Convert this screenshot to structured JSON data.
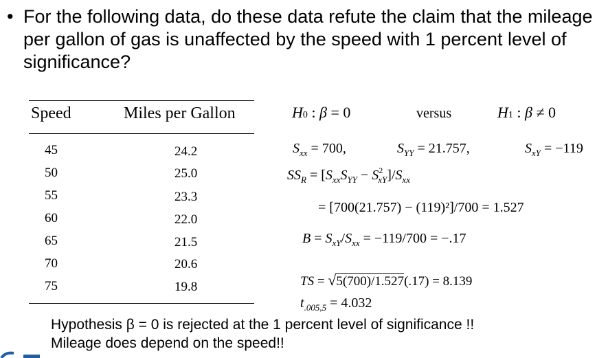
{
  "question": "For the following data, do these data refute the claim that the mileage per gallon of gas is unaffected by the speed with 1 percent level of significance?",
  "table": {
    "headers": [
      "Speed",
      "Miles per Gallon"
    ],
    "speed": [
      "45",
      "50",
      "55",
      "60",
      "65",
      "70",
      "75"
    ],
    "mpg": [
      "24.2",
      "25.0",
      "23.3",
      "22.0",
      "21.5",
      "20.6",
      "19.8"
    ]
  },
  "math": {
    "versus": "versus",
    "val_sxx": "= 700,",
    "val_syy": "= 21.757,",
    "val_sxy": "= −119",
    "ssr_eq": "= [700(21.757) − (119)²]/700 = 1.527",
    "b_eq": "= −119/700 = −.17",
    "ts_radicand": "5(700)/1.527",
    "ts_rest": "(.17) = 8.139",
    "t_crit": "= 4.032"
  },
  "conclusion": [
    "Hypothesis β = 0 is rejected at the 1 percent level of significance !!",
    "Mileage does depend on the speed!!"
  ],
  "colors": {
    "logo": "#1f5fa8"
  }
}
